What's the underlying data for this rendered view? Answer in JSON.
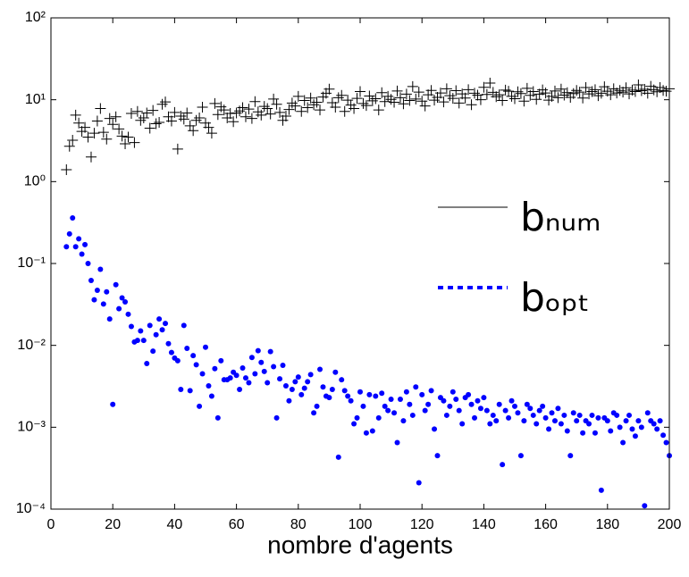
{
  "chart_data": {
    "type": "scatter",
    "x_label": "nombre d'agents",
    "log_y": true,
    "legend": "center right",
    "xlim": [
      0,
      200
    ],
    "xticks": [
      0,
      20,
      40,
      60,
      80,
      100,
      120,
      140,
      160,
      180,
      200
    ],
    "ylim": [
      0.0001,
      100
    ],
    "yticks": [
      {
        "value": 0.0001,
        "label": "10⁻⁴"
      },
      {
        "value": 0.001,
        "label": "10⁻³"
      },
      {
        "value": 0.01,
        "label": "10⁻²"
      },
      {
        "value": 0.1,
        "label": "10⁻¹"
      },
      {
        "value": 1,
        "label": "10⁰"
      },
      {
        "value": 10,
        "label": "10¹"
      },
      {
        "value": 100,
        "label": "10²"
      }
    ],
    "x": [
      5,
      6,
      7,
      8,
      9,
      10,
      11,
      12,
      13,
      14,
      15,
      16,
      17,
      18,
      19,
      20,
      21,
      22,
      23,
      24,
      25,
      26,
      27,
      28,
      29,
      30,
      31,
      32,
      33,
      34,
      35,
      36,
      37,
      38,
      39,
      40,
      41,
      42,
      43,
      44,
      45,
      46,
      47,
      48,
      49,
      50,
      51,
      52,
      53,
      54,
      55,
      56,
      57,
      58,
      59,
      60,
      61,
      62,
      63,
      64,
      65,
      66,
      67,
      68,
      69,
      70,
      71,
      72,
      73,
      74,
      75,
      76,
      77,
      78,
      79,
      80,
      81,
      82,
      83,
      84,
      85,
      86,
      87,
      88,
      89,
      90,
      91,
      92,
      93,
      94,
      95,
      96,
      97,
      98,
      99,
      100,
      101,
      102,
      103,
      104,
      105,
      106,
      107,
      108,
      109,
      110,
      111,
      112,
      113,
      114,
      115,
      116,
      117,
      118,
      119,
      120,
      121,
      122,
      123,
      124,
      125,
      126,
      127,
      128,
      129,
      130,
      131,
      132,
      133,
      134,
      135,
      136,
      137,
      138,
      139,
      140,
      141,
      142,
      143,
      144,
      145,
      146,
      147,
      148,
      149,
      150,
      151,
      152,
      153,
      154,
      155,
      156,
      157,
      158,
      159,
      160,
      161,
      162,
      163,
      164,
      165,
      166,
      167,
      168,
      169,
      170,
      171,
      172,
      173,
      174,
      175,
      176,
      177,
      178,
      179,
      180,
      181,
      182,
      183,
      184,
      185,
      186,
      187,
      188,
      189,
      190,
      191,
      192,
      193,
      194,
      195,
      196,
      197,
      198,
      199,
      200
    ],
    "series": [
      {
        "name": "bₙᵤₘ",
        "color": "#000000",
        "marker": "plus",
        "line_style": "solid",
        "values": [
          1.4,
          2.7,
          3.2,
          6.5,
          5.2,
          4.1,
          4.6,
          3.5,
          2.0,
          3.9,
          5.5,
          7.8,
          4.0,
          3.3,
          5.9,
          5.0,
          6.2,
          4.4,
          3.6,
          2.9,
          3.5,
          6.8,
          3.0,
          7.2,
          5.6,
          6.0,
          6.9,
          4.5,
          7.4,
          5.1,
          5.3,
          8.8,
          9.4,
          6.2,
          5.5,
          7.0,
          2.5,
          6.3,
          5.8,
          6.9,
          4.8,
          4.2,
          5.6,
          6.0,
          8.1,
          5.2,
          4.6,
          3.9,
          9.0,
          6.6,
          8.2,
          7.5,
          6.0,
          6.8,
          5.4,
          6.9,
          7.3,
          8.0,
          6.2,
          7.7,
          5.9,
          9.5,
          7.1,
          6.5,
          8.3,
          7.8,
          6.7,
          10.2,
          8.8,
          7.0,
          5.6,
          6.3,
          7.6,
          9.1,
          8.4,
          11.0,
          7.2,
          9.8,
          8.0,
          10.5,
          8.7,
          9.3,
          7.5,
          10.8,
          12.0,
          13.5,
          9.2,
          8.1,
          10.6,
          11.3,
          7.2,
          9.9,
          8.6,
          7.8,
          10.4,
          12.6,
          9.0,
          8.5,
          11.1,
          9.7,
          10.3,
          7.5,
          12.2,
          9.5,
          11.0,
          10.1,
          9.3,
          12.8,
          10.6,
          8.9,
          11.7,
          9.8,
          14.5,
          10.2,
          12.4,
          9.6,
          8.4,
          11.5,
          13.0,
          9.9,
          10.7,
          12.1,
          9.4,
          13.6,
          11.2,
          10.4,
          12.9,
          9.1,
          11.8,
          10.5,
          13.3,
          8.7,
          12.0,
          11.4,
          10.0,
          14.2,
          11.6,
          16.0,
          12.3,
          10.9,
          11.5,
          9.8,
          13.1,
          12.7,
          11.0,
          10.3,
          12.5,
          11.9,
          9.6,
          13.8,
          11.3,
          12.6,
          10.1,
          11.7,
          13.2,
          12.1,
          9.9,
          11.0,
          12.8,
          10.6,
          13.5,
          11.4,
          12.2,
          10.7,
          11.9,
          13.0,
          12.4,
          10.5,
          14.1,
          11.8,
          12.6,
          13.3,
          11.2,
          12.0,
          14.4,
          12.7,
          11.5,
          13.6,
          12.1,
          13.0,
          12.4,
          14.0,
          11.8,
          13.1,
          12.6,
          15.2,
          12.9,
          13.4,
          12.0,
          14.6,
          13.2,
          12.5,
          14.1,
          13.0,
          12.7,
          13.6
        ]
      },
      {
        "name": "bₒₚₜ",
        "color": "#0000ff",
        "marker": "dot",
        "line_style": "dotted",
        "values": [
          0.16,
          0.23,
          0.36,
          0.16,
          0.2,
          0.13,
          0.17,
          0.1,
          0.062,
          0.036,
          0.047,
          0.085,
          0.032,
          0.045,
          0.021,
          0.0019,
          0.055,
          0.028,
          0.038,
          0.034,
          0.024,
          0.017,
          0.011,
          0.0115,
          0.015,
          0.0115,
          0.006,
          0.0175,
          0.0085,
          0.0135,
          0.021,
          0.0155,
          0.0185,
          0.0105,
          0.0082,
          0.007,
          0.0065,
          0.0029,
          0.0175,
          0.0092,
          0.0028,
          0.0075,
          0.0058,
          0.0018,
          0.0045,
          0.0095,
          0.0032,
          0.0024,
          0.0052,
          0.0013,
          0.0065,
          0.0038,
          0.0038,
          0.004,
          0.0047,
          0.0043,
          0.0029,
          0.0053,
          0.004,
          0.0035,
          0.0071,
          0.0045,
          0.0086,
          0.0062,
          0.0048,
          0.0035,
          0.0084,
          0.0055,
          0.0013,
          0.0039,
          0.0057,
          0.0032,
          0.0021,
          0.0029,
          0.0036,
          0.0041,
          0.0025,
          0.003,
          0.0036,
          0.0044,
          0.0015,
          0.0018,
          0.0051,
          0.0031,
          0.0024,
          0.0023,
          0.0029,
          0.0047,
          0.00043,
          0.0038,
          0.0028,
          0.0024,
          0.0021,
          0.0011,
          0.0013,
          0.0027,
          0.0018,
          0.00085,
          0.0025,
          0.0009,
          0.0024,
          0.0013,
          0.0026,
          0.0018,
          0.0016,
          0.0022,
          0.0015,
          0.00065,
          0.0022,
          0.0012,
          0.0027,
          0.0019,
          0.0014,
          0.0031,
          0.00021,
          0.0025,
          0.0016,
          0.0019,
          0.0028,
          0.00095,
          0.00045,
          0.0023,
          0.0021,
          0.0014,
          0.0018,
          0.0027,
          0.0022,
          0.0016,
          0.0011,
          0.0023,
          0.0025,
          0.0019,
          0.0013,
          0.0021,
          0.0017,
          0.0023,
          0.0016,
          0.0011,
          0.0014,
          0.0012,
          0.0019,
          0.00035,
          0.0016,
          0.0013,
          0.0021,
          0.0018,
          0.0015,
          0.00045,
          0.0012,
          0.0019,
          0.0017,
          0.0014,
          0.0011,
          0.0016,
          0.0018,
          0.0013,
          0.00095,
          0.0015,
          0.0012,
          0.0017,
          0.0011,
          0.0014,
          0.0009,
          0.00045,
          0.0015,
          0.0012,
          0.0014,
          0.00085,
          0.0012,
          0.0011,
          0.0014,
          0.00085,
          0.0013,
          0.00017,
          0.0013,
          0.0012,
          0.0009,
          0.0015,
          0.0014,
          0.001,
          0.00065,
          0.0012,
          0.0014,
          0.00095,
          0.00078,
          0.0012,
          0.001,
          0.00011,
          0.0015,
          0.0012,
          0.0011,
          0.00095,
          0.0012,
          0.0008,
          0.00065,
          0.00045
        ]
      }
    ]
  }
}
